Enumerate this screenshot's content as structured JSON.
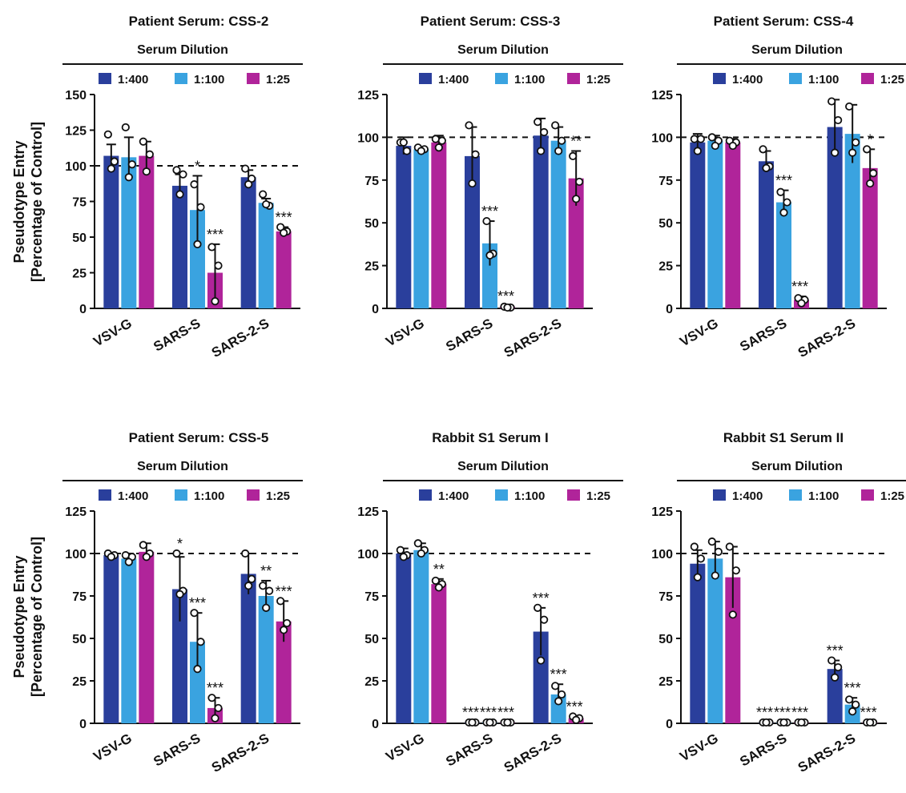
{
  "ylabel_lines": [
    "Pseudotype Entry",
    "[Percentage of Control]"
  ],
  "legend_title": "Serum Dilution",
  "series_colors": [
    "#2a3f9c",
    "#3aa3e0",
    "#b0249a"
  ],
  "chart_data": [
    {
      "type": "bar",
      "title": "Patient Serum: CSS-2",
      "categories": [
        "VSV-G",
        "SARS-S",
        "SARS-2-S"
      ],
      "ylim": [
        0,
        150
      ],
      "yticks": [
        0,
        25,
        50,
        75,
        100,
        125,
        150
      ],
      "reference_line": 100,
      "series": [
        {
          "name": "1:400",
          "values": [
            107,
            86,
            92
          ],
          "errors": [
            8,
            8,
            5
          ],
          "points": [
            [
              122,
              103,
              98
            ],
            [
              97,
              94,
              80
            ],
            [
              98,
              91,
              87
            ]
          ],
          "significance": [
            "",
            "",
            ""
          ]
        },
        {
          "name": "1:100",
          "values": [
            106,
            69,
            74
          ],
          "errors": [
            14,
            24,
            3
          ],
          "points": [
            [
              127,
              101,
              92
            ],
            [
              87,
              71,
              45
            ],
            [
              80,
              72,
              73
            ]
          ],
          "significance": [
            "",
            "*",
            ""
          ]
        },
        {
          "name": "1:25",
          "values": [
            107,
            25,
            54
          ],
          "errors": [
            10,
            20,
            3
          ],
          "points": [
            [
              117,
              108,
              96
            ],
            [
              43,
              30,
              5
            ],
            [
              57,
              54,
              53
            ]
          ],
          "significance": [
            "",
            "***",
            "***"
          ]
        }
      ]
    },
    {
      "type": "bar",
      "title": "Patient Serum: CSS-3",
      "categories": [
        "VSV-G",
        "SARS-S",
        "SARS-2-S"
      ],
      "ylim": [
        0,
        125
      ],
      "yticks": [
        0,
        25,
        50,
        75,
        100,
        125
      ],
      "reference_line": 100,
      "series": [
        {
          "name": "1:400",
          "values": [
            95,
            89,
            101
          ],
          "errors": [
            5,
            17,
            10
          ],
          "points": [
            [
              97,
              92,
              97
            ],
            [
              107,
              90,
              73
            ],
            [
              109,
              103,
              92
            ]
          ],
          "significance": [
            "",
            "",
            ""
          ]
        },
        {
          "name": "1:100",
          "values": [
            93,
            38,
            98
          ],
          "errors": [
            1,
            13,
            8
          ],
          "points": [
            [
              94,
              93,
              92
            ],
            [
              51,
              32,
              31
            ],
            [
              107,
              98,
              92
            ]
          ],
          "significance": [
            "",
            "***",
            ""
          ]
        },
        {
          "name": "1:25",
          "values": [
            97,
            1,
            76
          ],
          "errors": [
            4,
            0.5,
            16
          ],
          "points": [
            [
              99,
              98,
              94
            ],
            [
              1,
              0.5,
              0.5
            ],
            [
              89,
              74,
              64
            ]
          ],
          "significance": [
            "",
            "***",
            "**"
          ]
        }
      ]
    },
    {
      "type": "bar",
      "title": "Patient Serum: CSS-4",
      "categories": [
        "VSV-G",
        "SARS-S",
        "SARS-2-S"
      ],
      "ylim": [
        0,
        125
      ],
      "yticks": [
        0,
        25,
        50,
        75,
        100,
        125
      ],
      "reference_line": 100,
      "series": [
        {
          "name": "1:400",
          "values": [
            97,
            86,
            106
          ],
          "errors": [
            5,
            6,
            16
          ],
          "points": [
            [
              99,
              99,
              92
            ],
            [
              93,
              83,
              82
            ],
            [
              121,
              110,
              91
            ]
          ],
          "significance": [
            "",
            "",
            ""
          ]
        },
        {
          "name": "1:100",
          "values": [
            98,
            62,
            102
          ],
          "errors": [
            3,
            7,
            17
          ],
          "points": [
            [
              100,
              98,
              95
            ],
            [
              68,
              62,
              56
            ],
            [
              118,
              97,
              91
            ]
          ],
          "significance": [
            "",
            "***",
            ""
          ]
        },
        {
          "name": "1:25",
          "values": [
            97,
            5,
            82
          ],
          "errors": [
            2,
            2,
            11
          ],
          "points": [
            [
              98,
              97,
              95
            ],
            [
              6,
              5,
              3
            ],
            [
              93,
              79,
              73
            ]
          ],
          "significance": [
            "",
            "***",
            "*"
          ]
        }
      ]
    },
    {
      "type": "bar",
      "title": "Patient Serum: CSS-5",
      "categories": [
        "VSV-G",
        "SARS-S",
        "SARS-2-S"
      ],
      "ylim": [
        0,
        125
      ],
      "yticks": [
        0,
        25,
        50,
        75,
        100,
        125
      ],
      "reference_line": 100,
      "series": [
        {
          "name": "1:400",
          "values": [
            99,
            79,
            88
          ],
          "errors": [
            1,
            19,
            12
          ],
          "points": [
            [
              100,
              99,
              98
            ],
            [
              100,
              78,
              76
            ],
            [
              100,
              85,
              81
            ]
          ],
          "significance": [
            "",
            "*",
            ""
          ]
        },
        {
          "name": "1:100",
          "values": [
            97,
            48,
            75
          ],
          "errors": [
            3,
            17,
            9
          ],
          "points": [
            [
              99,
              98,
              95
            ],
            [
              65,
              48,
              32
            ],
            [
              81,
              78,
              68
            ]
          ],
          "significance": [
            "",
            "***",
            "**"
          ]
        },
        {
          "name": "1:25",
          "values": [
            101,
            9,
            60
          ],
          "errors": [
            5,
            6,
            12
          ],
          "points": [
            [
              105,
              100,
              98
            ],
            [
              15,
              9,
              3
            ],
            [
              72,
              59,
              55
            ]
          ],
          "significance": [
            "",
            "***",
            "***"
          ]
        }
      ]
    },
    {
      "type": "bar",
      "title": "Rabbit S1 Serum I",
      "categories": [
        "VSV-G",
        "SARS-S",
        "SARS-2-S"
      ],
      "ylim": [
        0,
        125
      ],
      "yticks": [
        0,
        25,
        50,
        75,
        100,
        125
      ],
      "reference_line": 100,
      "series": [
        {
          "name": "1:400",
          "values": [
            100,
            0.5,
            54
          ],
          "errors": [
            3,
            0.3,
            14
          ],
          "points": [
            [
              102,
              99,
              98
            ],
            [
              0.5,
              0.5,
              0.5
            ],
            [
              68,
              61,
              37
            ]
          ],
          "significance": [
            "",
            "***",
            "***"
          ]
        },
        {
          "name": "1:100",
          "values": [
            102,
            0.5,
            17
          ],
          "errors": [
            4,
            0.3,
            6
          ],
          "points": [
            [
              106,
              102,
              100
            ],
            [
              0.5,
              0.5,
              0.5
            ],
            [
              22,
              17,
              13
            ]
          ],
          "significance": [
            "",
            "***",
            "***"
          ]
        },
        {
          "name": "1:25",
          "values": [
            82,
            0.5,
            3
          ],
          "errors": [
            3,
            0.3,
            1
          ],
          "points": [
            [
              84,
              82,
              80
            ],
            [
              0.5,
              0.5,
              0.5
            ],
            [
              4,
              3,
              2
            ]
          ],
          "significance": [
            "**",
            "***",
            "***"
          ]
        }
      ]
    },
    {
      "type": "bar",
      "title": "Rabbit S1 Serum II",
      "categories": [
        "VSV-G",
        "SARS-S",
        "SARS-2-S"
      ],
      "ylim": [
        0,
        125
      ],
      "yticks": [
        0,
        25,
        50,
        75,
        100,
        125
      ],
      "reference_line": 100,
      "series": [
        {
          "name": "1:400",
          "values": [
            94,
            0.5,
            32
          ],
          "errors": [
            8,
            0.3,
            5
          ],
          "points": [
            [
              104,
              97,
              86
            ],
            [
              0.5,
              0.5,
              0.5
            ],
            [
              37,
              33,
              27
            ]
          ],
          "significance": [
            "",
            "***",
            "***"
          ]
        },
        {
          "name": "1:100",
          "values": [
            97,
            0.5,
            11
          ],
          "errors": [
            10,
            0.3,
            4
          ],
          "points": [
            [
              107,
              101,
              87
            ],
            [
              0.5,
              0.5,
              0.5
            ],
            [
              14,
              11,
              7
            ]
          ],
          "significance": [
            "",
            "***",
            "***"
          ]
        },
        {
          "name": "1:25",
          "values": [
            86,
            0.5,
            0.5
          ],
          "errors": [
            18,
            0.3,
            0.3
          ],
          "points": [
            [
              104,
              90,
              64
            ],
            [
              0.5,
              0.5,
              0.5
            ],
            [
              0.5,
              0.5,
              0.5
            ]
          ],
          "significance": [
            "",
            "***",
            "***"
          ]
        }
      ]
    }
  ]
}
